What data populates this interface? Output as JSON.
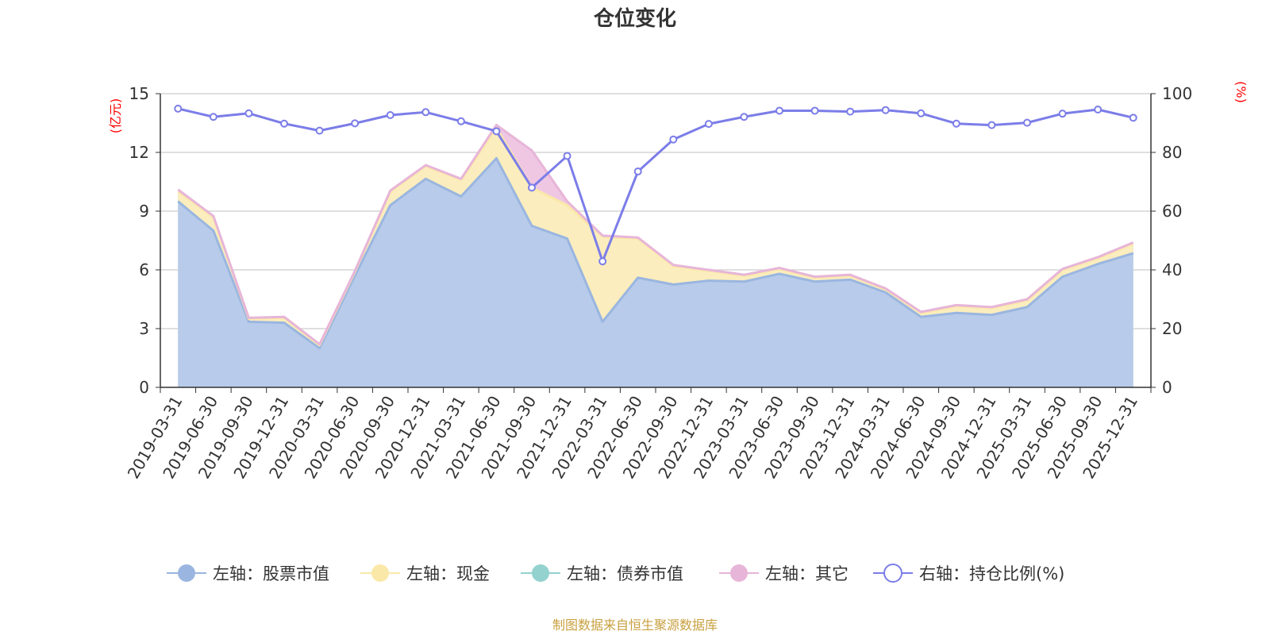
{
  "chart_data": {
    "type": "area",
    "title": "仓位变化",
    "left_unit": "(亿元)",
    "right_unit": "(%)",
    "left_ylim": [
      0,
      15
    ],
    "left_ticks": [
      "0",
      "3",
      "6",
      "9",
      "12",
      "15"
    ],
    "right_ylim": [
      0,
      100
    ],
    "right_ticks": [
      "0",
      "20",
      "40",
      "60",
      "80",
      "100"
    ],
    "categories": [
      "2019-03-31",
      "2019-06-30",
      "2019-09-30",
      "2019-12-31",
      "2020-03-31",
      "2020-06-30",
      "2020-09-30",
      "2020-12-31",
      "2021-03-31",
      "2021-06-30",
      "2021-09-30",
      "2021-12-31",
      "2022-03-31",
      "2022-06-30",
      "2022-09-30",
      "2022-12-31",
      "2023-03-31",
      "2023-06-30",
      "2023-09-30",
      "2023-12-31",
      "2024-03-31",
      "2024-06-30",
      "2024-09-30",
      "2024-12-31",
      "2025-03-31",
      "2025-06-30",
      "2025-09-30",
      "2025-12-31"
    ],
    "series": [
      {
        "name": "左轴：股票市值",
        "axis": "left",
        "color": "#9ab6e0",
        "fill": "#b8cbea",
        "values": [
          9.5,
          8.0,
          3.35,
          3.3,
          2.0,
          5.7,
          9.3,
          10.65,
          9.75,
          11.7,
          8.25,
          7.6,
          3.35,
          5.6,
          5.25,
          5.45,
          5.4,
          5.8,
          5.4,
          5.5,
          4.85,
          3.6,
          3.8,
          3.7,
          4.1,
          5.65,
          6.3,
          6.85
        ]
      },
      {
        "name": "左轴：现金",
        "axis": "left",
        "color": "#fae8a8",
        "fill": "#fbedbd",
        "values": [
          0.5,
          0.7,
          0.15,
          0.25,
          0.15,
          0.2,
          0.7,
          0.65,
          0.85,
          1.55,
          1.95,
          1.7,
          4.35,
          2.0,
          0.95,
          0.5,
          0.3,
          0.25,
          0.2,
          0.2,
          0.15,
          0.2,
          0.35,
          0.35,
          0.35,
          0.35,
          0.3,
          0.5
        ]
      },
      {
        "name": "左轴：债券市值",
        "axis": "left",
        "color": "#93d2cf",
        "fill": "#b6e1df",
        "values": [
          0,
          0,
          0,
          0,
          0,
          0,
          0,
          0,
          0,
          0,
          0,
          0,
          0,
          0,
          0,
          0,
          0,
          0,
          0,
          0,
          0,
          0,
          0,
          0,
          0,
          0,
          0,
          0
        ]
      },
      {
        "name": "左轴：其它",
        "axis": "left",
        "color": "#e7b5d8",
        "fill": "#efc7e3",
        "values": [
          0.1,
          0.05,
          0.05,
          0.05,
          0.05,
          0.05,
          0.05,
          0.05,
          0.05,
          0.15,
          1.9,
          0.2,
          0.05,
          0.05,
          0.05,
          0.05,
          0.05,
          0.05,
          0.05,
          0.05,
          0.05,
          0.05,
          0.05,
          0.05,
          0.05,
          0.05,
          0.05,
          0.05
        ]
      },
      {
        "name": "右轴：持仓比例(%)",
        "axis": "right",
        "color": "#7b7de8",
        "values": [
          94.9,
          92.1,
          93.3,
          89.8,
          87.4,
          89.9,
          92.7,
          93.7,
          90.6,
          87.2,
          68.0,
          78.8,
          42.9,
          73.5,
          84.4,
          89.7,
          92.1,
          94.2,
          94.2,
          93.9,
          94.4,
          93.3,
          89.8,
          89.3,
          90.1,
          93.2,
          94.6,
          91.8
        ]
      }
    ],
    "legend_position": "bottom",
    "source": "制图数据来自恒生聚源数据库",
    "colors": {
      "title": "#333333",
      "axis": "#333333",
      "grid": "#cccccc",
      "unit": "#ff0000",
      "footer": "#c8a040"
    }
  }
}
